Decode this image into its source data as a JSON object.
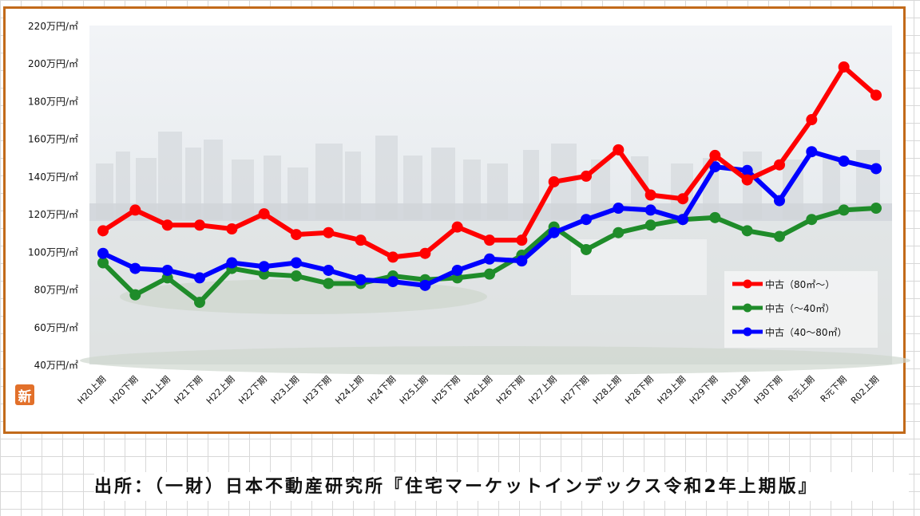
{
  "chart_data": {
    "type": "line",
    "title": "",
    "xlabel": "",
    "ylabel": "",
    "ylim": [
      40,
      220
    ],
    "yticks": [
      40,
      60,
      80,
      100,
      120,
      140,
      160,
      180,
      200,
      220
    ],
    "y_unit_suffix": "万円/㎡",
    "grid": false,
    "legend_position": "bottom-right",
    "categories": [
      "H20上期",
      "H20下期",
      "H21上期",
      "H21下期",
      "H22上期",
      "H22下期",
      "H23上期",
      "H23下期",
      "H24上期",
      "H24下期",
      "H25上期",
      "H25下期",
      "H26上期",
      "H26下期",
      "H27上期",
      "H27下期",
      "H28上期",
      "H28下期",
      "H29上期",
      "H29下期",
      "H30上期",
      "H30下期",
      "R元上期",
      "R元下期",
      "R02上期"
    ],
    "series": [
      {
        "name": "中古（80㎡～）",
        "color": "#ff0000",
        "values": [
          111,
          122,
          114,
          114,
          112,
          120,
          109,
          110,
          106,
          97,
          99,
          113,
          106,
          106,
          137,
          140,
          154,
          130,
          128,
          151,
          138,
          146,
          170,
          198,
          183
        ]
      },
      {
        "name": "中古（～40㎡）",
        "color": "#1f8c2a",
        "values": [
          94,
          77,
          86,
          73,
          91,
          88,
          87,
          83,
          83,
          87,
          85,
          86,
          88,
          98,
          113,
          101,
          110,
          114,
          117,
          118,
          111,
          108,
          117,
          122,
          123
        ]
      },
      {
        "name": "中古（40～80㎡）",
        "color": "#0000ff",
        "values": [
          99,
          91,
          90,
          86,
          94,
          92,
          94,
          90,
          85,
          84,
          82,
          90,
          96,
          95,
          110,
          117,
          123,
          122,
          117,
          145,
          143,
          127,
          153,
          148,
          144
        ]
      }
    ]
  },
  "logo_text": "新",
  "caption": "出所：（一財）日本不動産研究所『住宅マーケットインデックス令和2年上期版』"
}
